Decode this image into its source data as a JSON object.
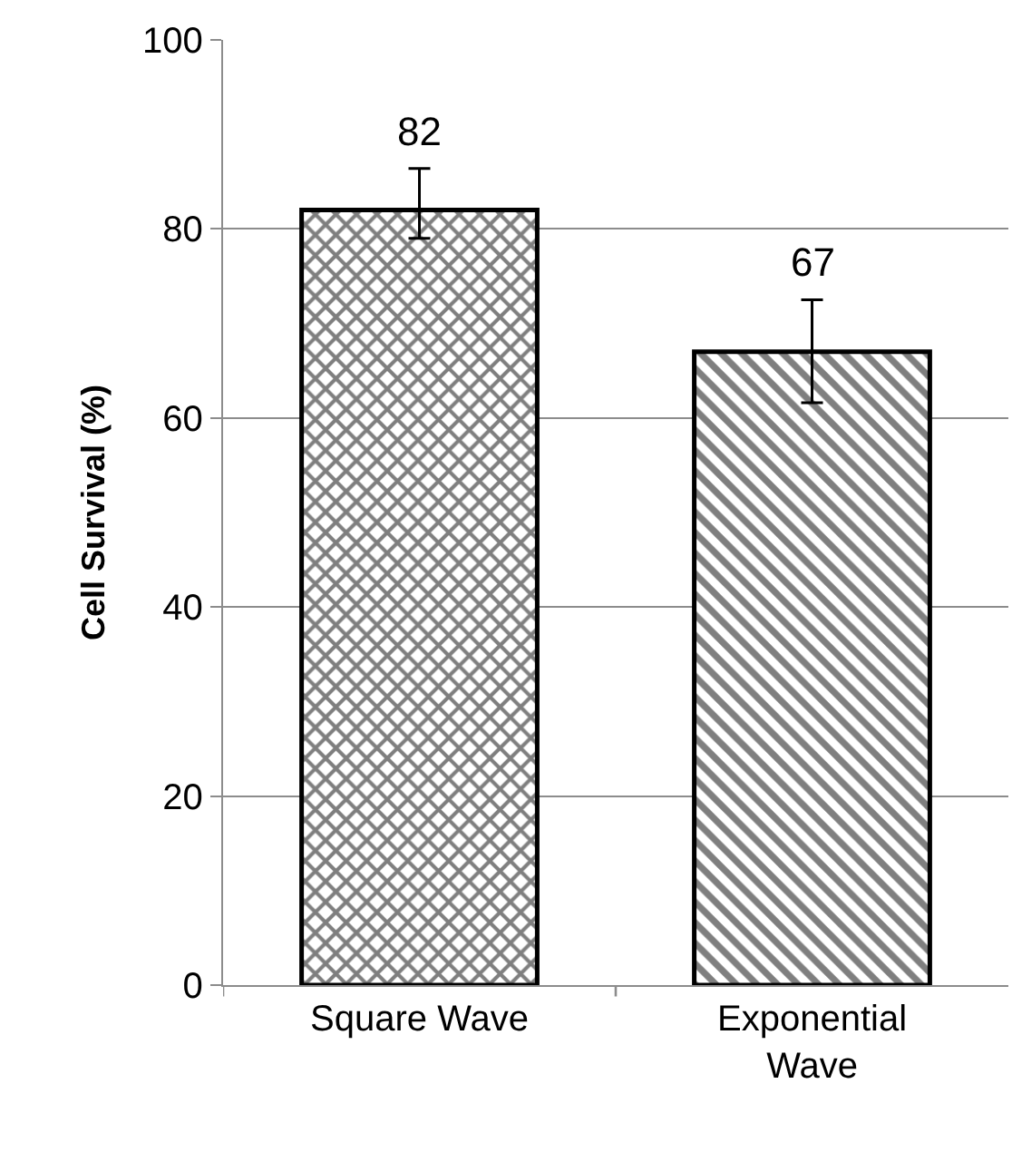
{
  "chart_data": {
    "type": "bar",
    "ylabel": "Cell Survival (%)",
    "categories": [
      "Square Wave",
      "Exponential Wave"
    ],
    "values": [
      82,
      67
    ],
    "errors": [
      [
        79,
        86.4
      ],
      [
        61.6,
        72.5
      ]
    ],
    "colors": [
      "#000000",
      "#000000"
    ],
    "data_labels": true,
    "ylim": [
      0,
      100
    ],
    "yticks": [
      0,
      20,
      40,
      60,
      80,
      100
    ],
    "grid": "y"
  }
}
